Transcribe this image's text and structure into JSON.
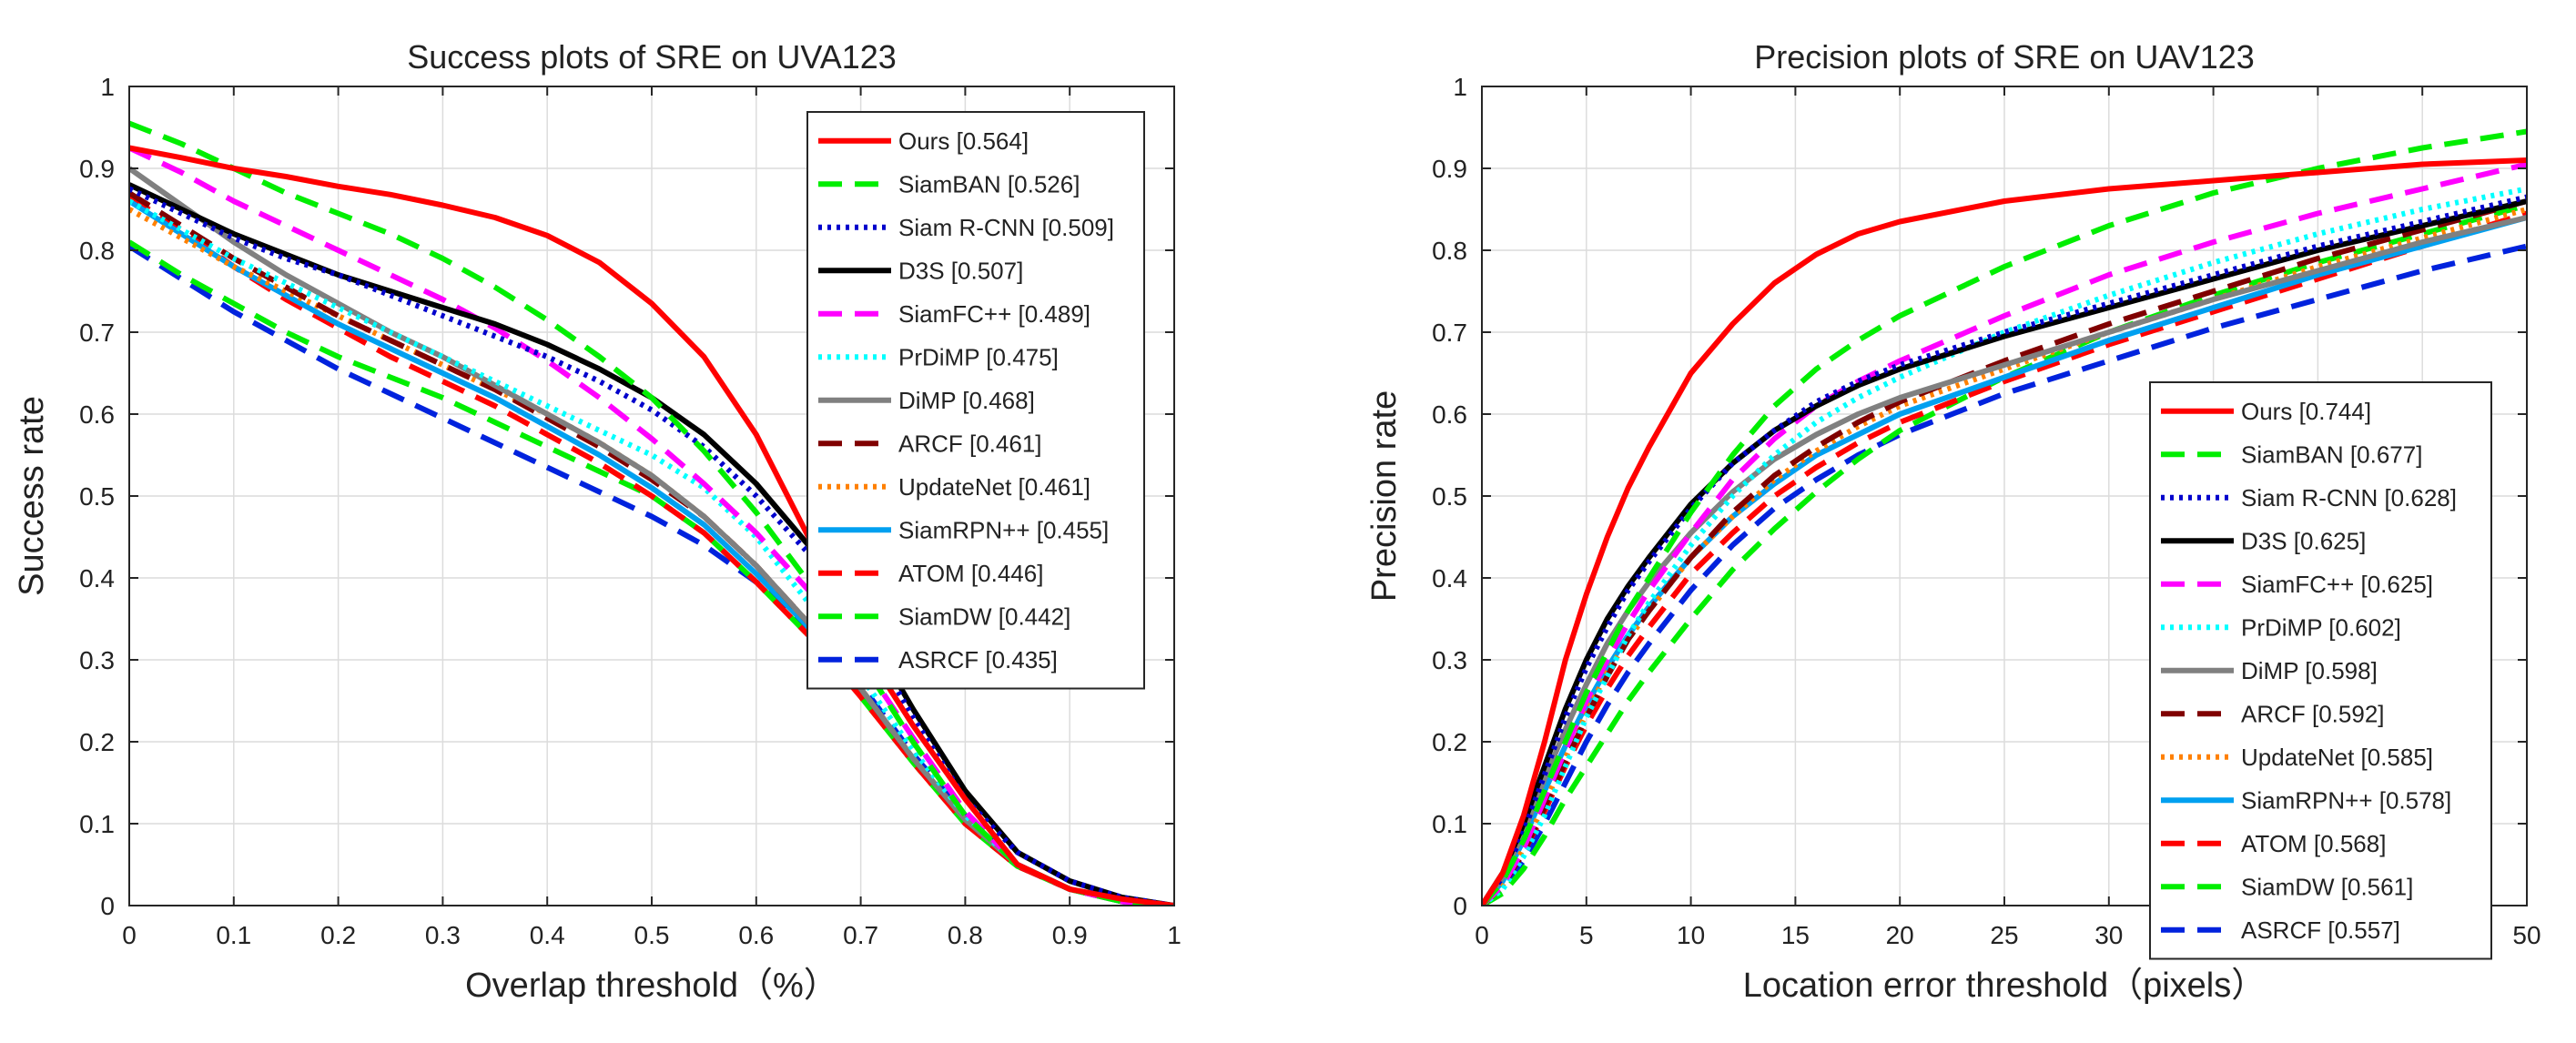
{
  "chart_data": [
    {
      "type": "line",
      "title": "Success plots of SRE on UVA123",
      "xlabel": "Overlap threshold（%）",
      "ylabel": "Success rate",
      "xlim": [
        0,
        1
      ],
      "ylim": [
        0,
        1
      ],
      "xticks": [
        "0",
        "0.1",
        "0.2",
        "0.3",
        "0.4",
        "0.5",
        "0.6",
        "0.7",
        "0.8",
        "0.9",
        "1"
      ],
      "yticks": [
        "0",
        "0.1",
        "0.2",
        "0.3",
        "0.4",
        "0.5",
        "0.6",
        "0.7",
        "0.8",
        "0.9",
        "1"
      ],
      "grid": true,
      "legend_position": "top-right",
      "x": [
        0,
        0.05,
        0.1,
        0.15,
        0.2,
        0.25,
        0.3,
        0.35,
        0.4,
        0.45,
        0.5,
        0.55,
        0.6,
        0.65,
        0.7,
        0.75,
        0.8,
        0.85,
        0.9,
        0.95,
        1.0
      ],
      "series": [
        {
          "name": "Ours",
          "label": "Ours [0.564]",
          "color": "#ff0000",
          "style": "solid",
          "values": [
            0.925,
            0.913,
            0.9,
            0.89,
            0.878,
            0.868,
            0.855,
            0.84,
            0.818,
            0.785,
            0.735,
            0.67,
            0.575,
            0.45,
            0.32,
            0.22,
            0.13,
            0.05,
            0.02,
            0.008,
            0.0
          ]
        },
        {
          "name": "SiamBAN",
          "label": "SiamBAN [0.526]",
          "color": "#00ee00",
          "style": "dashed",
          "values": [
            0.955,
            0.93,
            0.9,
            0.87,
            0.845,
            0.82,
            0.79,
            0.755,
            0.715,
            0.67,
            0.62,
            0.555,
            0.48,
            0.395,
            0.3,
            0.2,
            0.11,
            0.05,
            0.02,
            0.005,
            0.0
          ]
        },
        {
          "name": "Siam R-CNN",
          "label": "Siam R-CNN [0.509]",
          "color": "#0000cc",
          "style": "dotted",
          "values": [
            0.875,
            0.845,
            0.815,
            0.79,
            0.77,
            0.745,
            0.72,
            0.695,
            0.67,
            0.64,
            0.605,
            0.56,
            0.5,
            0.43,
            0.34,
            0.23,
            0.13,
            0.065,
            0.03,
            0.01,
            0.0
          ]
        },
        {
          "name": "D3S",
          "label": "D3S [0.507]",
          "color": "#000000",
          "style": "solid",
          "values": [
            0.88,
            0.85,
            0.82,
            0.795,
            0.77,
            0.75,
            0.73,
            0.71,
            0.685,
            0.655,
            0.62,
            0.575,
            0.515,
            0.44,
            0.35,
            0.24,
            0.14,
            0.065,
            0.03,
            0.01,
            0.0
          ]
        },
        {
          "name": "SiamFC++",
          "label": "SiamFC++ [0.489]",
          "color": "#ff00ff",
          "style": "dashed",
          "values": [
            0.925,
            0.895,
            0.86,
            0.83,
            0.8,
            0.77,
            0.74,
            0.705,
            0.665,
            0.62,
            0.57,
            0.515,
            0.455,
            0.385,
            0.3,
            0.205,
            0.115,
            0.05,
            0.02,
            0.005,
            0.0
          ]
        },
        {
          "name": "PrDiMP",
          "label": "PrDiMP [0.475]",
          "color": "#00ffff",
          "style": "dotted",
          "values": [
            0.86,
            0.825,
            0.79,
            0.76,
            0.73,
            0.7,
            0.67,
            0.64,
            0.61,
            0.58,
            0.55,
            0.51,
            0.45,
            0.37,
            0.28,
            0.19,
            0.11,
            0.05,
            0.02,
            0.005,
            0.0
          ]
        },
        {
          "name": "DiMP",
          "label": "DiMP [0.468]",
          "color": "#808080",
          "style": "solid",
          "values": [
            0.9,
            0.855,
            0.81,
            0.77,
            0.735,
            0.7,
            0.67,
            0.635,
            0.6,
            0.565,
            0.525,
            0.475,
            0.415,
            0.345,
            0.265,
            0.18,
            0.105,
            0.05,
            0.02,
            0.005,
            0.0
          ]
        },
        {
          "name": "ARCF",
          "label": "ARCF [0.461]",
          "color": "#800000",
          "style": "dashed",
          "values": [
            0.87,
            0.83,
            0.79,
            0.755,
            0.72,
            0.69,
            0.66,
            0.63,
            0.595,
            0.56,
            0.52,
            0.475,
            0.415,
            0.345,
            0.265,
            0.18,
            0.105,
            0.05,
            0.02,
            0.005,
            0.0
          ]
        },
        {
          "name": "UpdateNet",
          "label": "UpdateNet [0.461]",
          "color": "#ff8000",
          "style": "dotted",
          "values": [
            0.85,
            0.815,
            0.78,
            0.75,
            0.72,
            0.69,
            0.66,
            0.63,
            0.6,
            0.565,
            0.525,
            0.475,
            0.415,
            0.345,
            0.265,
            0.18,
            0.105,
            0.05,
            0.02,
            0.005,
            0.0
          ]
        },
        {
          "name": "SiamRPN++",
          "label": "SiamRPN++ [0.455]",
          "color": "#00a0f0",
          "style": "solid",
          "values": [
            0.86,
            0.82,
            0.78,
            0.745,
            0.71,
            0.68,
            0.65,
            0.62,
            0.585,
            0.55,
            0.51,
            0.465,
            0.405,
            0.34,
            0.265,
            0.18,
            0.105,
            0.05,
            0.02,
            0.005,
            0.0
          ]
        },
        {
          "name": "ATOM",
          "label": "ATOM [0.446]",
          "color": "#ff0000",
          "style": "dashed",
          "values": [
            0.865,
            0.825,
            0.78,
            0.74,
            0.705,
            0.67,
            0.64,
            0.61,
            0.575,
            0.54,
            0.5,
            0.455,
            0.395,
            0.33,
            0.255,
            0.175,
            0.1,
            0.048,
            0.02,
            0.005,
            0.0
          ]
        },
        {
          "name": "SiamDW",
          "label": "SiamDW [0.442]",
          "color": "#00ee00",
          "style": "dashed",
          "values": [
            0.81,
            0.77,
            0.735,
            0.7,
            0.67,
            0.645,
            0.62,
            0.59,
            0.56,
            0.53,
            0.5,
            0.455,
            0.395,
            0.33,
            0.255,
            0.175,
            0.1,
            0.048,
            0.02,
            0.005,
            0.0
          ]
        },
        {
          "name": "ASRCF",
          "label": "ASRCF [0.435]",
          "color": "#0022dd",
          "style": "dashed",
          "values": [
            0.805,
            0.765,
            0.725,
            0.69,
            0.655,
            0.625,
            0.595,
            0.565,
            0.535,
            0.505,
            0.475,
            0.44,
            0.395,
            0.34,
            0.27,
            0.185,
            0.11,
            0.05,
            0.02,
            0.005,
            0.0
          ]
        }
      ]
    },
    {
      "type": "line",
      "title": "Precision plots of SRE on UAV123",
      "xlabel": "Location error threshold（pixels）",
      "ylabel": "Precision rate",
      "xlim": [
        0,
        50
      ],
      "ylim": [
        0,
        1
      ],
      "xticks": [
        "0",
        "5",
        "10",
        "15",
        "20",
        "25",
        "30",
        "35",
        "40",
        "45",
        "50"
      ],
      "yticks": [
        "0",
        "0.1",
        "0.2",
        "0.3",
        "0.4",
        "0.5",
        "0.6",
        "0.7",
        "0.8",
        "0.9",
        "1"
      ],
      "grid": true,
      "legend_position": "lower-right",
      "x": [
        0,
        1,
        2,
        3,
        4,
        5,
        6,
        7,
        8,
        10,
        12,
        14,
        16,
        18,
        20,
        25,
        30,
        35,
        40,
        45,
        50
      ],
      "series": [
        {
          "name": "Ours",
          "label": "Ours [0.744]",
          "color": "#ff0000",
          "style": "solid",
          "values": [
            0.0,
            0.04,
            0.11,
            0.2,
            0.3,
            0.38,
            0.45,
            0.51,
            0.56,
            0.65,
            0.71,
            0.76,
            0.795,
            0.82,
            0.835,
            0.86,
            0.875,
            0.885,
            0.895,
            0.905,
            0.91
          ]
        },
        {
          "name": "SiamBAN",
          "label": "SiamBAN [0.677]",
          "color": "#00ee00",
          "style": "dashed",
          "values": [
            0.0,
            0.03,
            0.08,
            0.14,
            0.2,
            0.26,
            0.31,
            0.36,
            0.4,
            0.48,
            0.55,
            0.61,
            0.655,
            0.69,
            0.72,
            0.78,
            0.83,
            0.87,
            0.9,
            0.925,
            0.945
          ]
        },
        {
          "name": "Siam R-CNN",
          "label": "Siam R-CNN [0.628]",
          "color": "#0000cc",
          "style": "dotted",
          "values": [
            0.0,
            0.035,
            0.09,
            0.16,
            0.23,
            0.29,
            0.34,
            0.385,
            0.42,
            0.485,
            0.54,
            0.58,
            0.615,
            0.64,
            0.66,
            0.7,
            0.735,
            0.77,
            0.805,
            0.835,
            0.865
          ]
        },
        {
          "name": "D3S",
          "label": "D3S [0.625]",
          "color": "#000000",
          "style": "solid",
          "values": [
            0.0,
            0.04,
            0.1,
            0.17,
            0.24,
            0.3,
            0.35,
            0.39,
            0.425,
            0.49,
            0.54,
            0.58,
            0.61,
            0.635,
            0.655,
            0.695,
            0.73,
            0.765,
            0.8,
            0.83,
            0.86
          ]
        },
        {
          "name": "SiamFC++",
          "label": "SiamFC++ [0.625]",
          "color": "#ff00ff",
          "style": "dashed",
          "values": [
            0.0,
            0.025,
            0.07,
            0.13,
            0.19,
            0.25,
            0.3,
            0.345,
            0.385,
            0.455,
            0.52,
            0.57,
            0.61,
            0.64,
            0.665,
            0.72,
            0.77,
            0.81,
            0.845,
            0.875,
            0.905
          ]
        },
        {
          "name": "PrDiMP",
          "label": "PrDiMP [0.602]",
          "color": "#00ffff",
          "style": "dotted",
          "values": [
            0.0,
            0.02,
            0.06,
            0.11,
            0.17,
            0.23,
            0.28,
            0.33,
            0.37,
            0.44,
            0.5,
            0.55,
            0.59,
            0.62,
            0.645,
            0.7,
            0.745,
            0.785,
            0.82,
            0.85,
            0.875
          ]
        },
        {
          "name": "DiMP",
          "label": "DiMP [0.598]",
          "color": "#808080",
          "style": "solid",
          "values": [
            0.0,
            0.035,
            0.09,
            0.155,
            0.215,
            0.27,
            0.32,
            0.36,
            0.395,
            0.455,
            0.505,
            0.545,
            0.575,
            0.6,
            0.62,
            0.66,
            0.7,
            0.74,
            0.775,
            0.81,
            0.84
          ]
        },
        {
          "name": "ARCF",
          "label": "ARCF [0.592]",
          "color": "#800000",
          "style": "dashed",
          "values": [
            0.0,
            0.025,
            0.065,
            0.12,
            0.175,
            0.23,
            0.28,
            0.325,
            0.36,
            0.425,
            0.48,
            0.525,
            0.56,
            0.59,
            0.615,
            0.665,
            0.71,
            0.75,
            0.79,
            0.825,
            0.86
          ]
        },
        {
          "name": "UpdateNet",
          "label": "UpdateNet [0.585]",
          "color": "#ff8000",
          "style": "dotted",
          "values": [
            0.0,
            0.025,
            0.07,
            0.125,
            0.18,
            0.235,
            0.285,
            0.325,
            0.36,
            0.425,
            0.475,
            0.52,
            0.555,
            0.585,
            0.61,
            0.655,
            0.7,
            0.74,
            0.78,
            0.815,
            0.85
          ]
        },
        {
          "name": "SiamRPN++",
          "label": "SiamRPN++ [0.578]",
          "color": "#00a0f0",
          "style": "solid",
          "values": [
            0.0,
            0.03,
            0.08,
            0.14,
            0.195,
            0.245,
            0.29,
            0.33,
            0.365,
            0.425,
            0.475,
            0.515,
            0.55,
            0.575,
            0.6,
            0.645,
            0.69,
            0.73,
            0.77,
            0.805,
            0.84
          ]
        },
        {
          "name": "ATOM",
          "label": "ATOM [0.568]",
          "color": "#ff0000",
          "style": "dashed",
          "values": [
            0.0,
            0.025,
            0.065,
            0.115,
            0.17,
            0.22,
            0.265,
            0.305,
            0.34,
            0.405,
            0.455,
            0.5,
            0.535,
            0.565,
            0.59,
            0.64,
            0.685,
            0.725,
            0.765,
            0.805,
            0.845
          ]
        },
        {
          "name": "SiamDW",
          "label": "SiamDW [0.561]",
          "color": "#00ee00",
          "style": "dashed",
          "values": [
            0.0,
            0.015,
            0.045,
            0.085,
            0.13,
            0.17,
            0.21,
            0.25,
            0.285,
            0.35,
            0.41,
            0.46,
            0.505,
            0.545,
            0.58,
            0.645,
            0.7,
            0.745,
            0.785,
            0.82,
            0.855
          ]
        },
        {
          "name": "ASRCF",
          "label": "ASRCF [0.557]",
          "color": "#0022dd",
          "style": "dashed",
          "values": [
            0.0,
            0.02,
            0.055,
            0.1,
            0.15,
            0.2,
            0.245,
            0.285,
            0.32,
            0.385,
            0.44,
            0.485,
            0.52,
            0.55,
            0.575,
            0.625,
            0.665,
            0.705,
            0.74,
            0.775,
            0.805
          ]
        }
      ]
    }
  ]
}
